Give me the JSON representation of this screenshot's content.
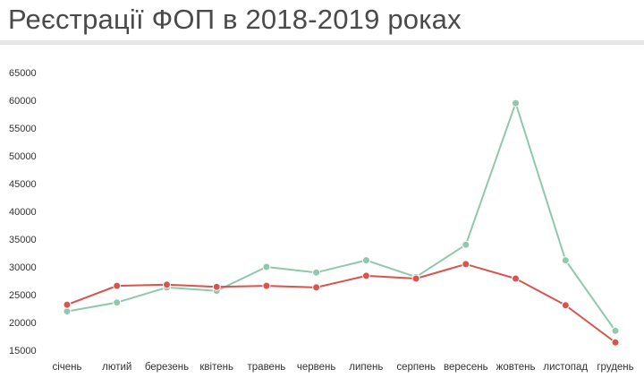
{
  "title": "Реєстрації ФОП в 2018-2019 роках",
  "chart_data": {
    "type": "line",
    "title": "Реєстрації ФОП в 2018-2019 роках",
    "xlabel": "",
    "ylabel": "",
    "categories": [
      "січень",
      "лютий",
      "березень",
      "квітень",
      "травень",
      "червень",
      "липень",
      "серпень",
      "вересень",
      "жовтень",
      "листопад",
      "грудень"
    ],
    "y_ticks": [
      "15000",
      "20000",
      "25000",
      "30000",
      "35000",
      "40000",
      "45000",
      "50000",
      "55000",
      "60000",
      "65000"
    ],
    "ylim": [
      15000,
      65000
    ],
    "grid": false,
    "legend": "none",
    "series": [
      {
        "color": "#8fc8ad",
        "values": [
          22000,
          23600,
          26300,
          25700,
          30000,
          29000,
          31200,
          28200,
          34000,
          59500,
          31200,
          18500
        ]
      },
      {
        "color": "#d9534f",
        "values": [
          23200,
          26600,
          26800,
          26400,
          26600,
          26300,
          28400,
          27900,
          30500,
          27900,
          23100,
          16400
        ]
      }
    ]
  }
}
